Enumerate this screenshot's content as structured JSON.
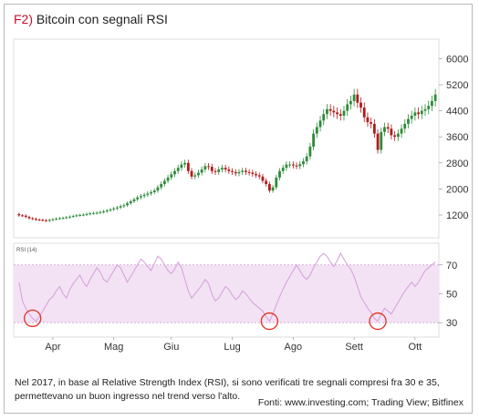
{
  "figure": {
    "number": "F2)",
    "title": "Bitcoin con segnali RSI"
  },
  "caption": "Nel 2017, in base al Relative Strength Index (RSI), si sono verificati tre segnali compresi fra 30 e 35, permettevano un buon ingresso nel trend verso l'alto.",
  "sources": "Fonti: www.investing.com; Trading View; Bitfinex",
  "colors": {
    "up": "#2e8b3a",
    "down": "#b11a1a",
    "rsi_line": "#d6a4dc",
    "rsi_band": "#f3e2f4",
    "signal_circle": "#e0301e",
    "title_accent": "#c8102e"
  },
  "chart_data": [
    {
      "type": "candlestick",
      "title": "Bitcoin con segnali RSI",
      "ylim": [
        500,
        6600
      ],
      "yticks": [
        1200,
        2000,
        2800,
        3600,
        4400,
        5200,
        6000
      ],
      "xticks": [
        "Apr",
        "Mag",
        "Giu",
        "Lug",
        "Ago",
        "Sett",
        "Ott"
      ],
      "close": [
        1190,
        1180,
        1140,
        1100,
        1080,
        1060,
        1050,
        1040,
        1020,
        1050,
        1070,
        1090,
        1100,
        1110,
        1130,
        1150,
        1170,
        1190,
        1200,
        1210,
        1230,
        1250,
        1260,
        1270,
        1290,
        1310,
        1340,
        1370,
        1400,
        1430,
        1470,
        1500,
        1560,
        1620,
        1680,
        1740,
        1780,
        1820,
        1860,
        1900,
        1950,
        2050,
        2150,
        2250,
        2350,
        2450,
        2550,
        2650,
        2750,
        2800,
        2550,
        2380,
        2420,
        2500,
        2600,
        2700,
        2680,
        2550,
        2520,
        2600,
        2650,
        2600,
        2550,
        2520,
        2480,
        2520,
        2560,
        2520,
        2500,
        2460,
        2420,
        2380,
        2250,
        2150,
        1950,
        2050,
        2350,
        2550,
        2650,
        2750,
        2750,
        2720,
        2700,
        2760,
        2850,
        3000,
        3300,
        3700,
        3900,
        4100,
        4300,
        4450,
        4400,
        4350,
        4300,
        4250,
        4400,
        4600,
        4700,
        4900,
        4650,
        4500,
        4200,
        4050,
        4000,
        3700,
        3200,
        3750,
        3900,
        3850,
        3650,
        3600,
        3700,
        3850,
        4000,
        4150,
        4250,
        4350,
        4300,
        4400,
        4450,
        4550,
        4700,
        4900
      ],
      "open": [
        1230,
        1190,
        1180,
        1140,
        1100,
        1080,
        1060,
        1050,
        1040,
        1020,
        1050,
        1070,
        1090,
        1100,
        1110,
        1130,
        1150,
        1170,
        1190,
        1200,
        1210,
        1230,
        1250,
        1260,
        1270,
        1290,
        1310,
        1340,
        1370,
        1400,
        1430,
        1470,
        1500,
        1560,
        1620,
        1680,
        1740,
        1780,
        1820,
        1860,
        1900,
        1950,
        2050,
        2150,
        2250,
        2350,
        2450,
        2550,
        2650,
        2750,
        2800,
        2550,
        2380,
        2420,
        2500,
        2600,
        2700,
        2680,
        2550,
        2520,
        2600,
        2650,
        2600,
        2550,
        2520,
        2480,
        2520,
        2560,
        2520,
        2500,
        2460,
        2420,
        2380,
        2250,
        2150,
        1950,
        2050,
        2350,
        2550,
        2650,
        2750,
        2750,
        2720,
        2700,
        2760,
        2850,
        3000,
        3300,
        3700,
        3900,
        4100,
        4300,
        4450,
        4400,
        4350,
        4300,
        4250,
        4400,
        4600,
        4700,
        4900,
        4650,
        4500,
        4200,
        4050,
        4000,
        3700,
        3200,
        3750,
        3900,
        3850,
        3650,
        3600,
        3700,
        3850,
        4000,
        4150,
        4250,
        4350,
        4300,
        4400,
        4450,
        4550,
        4700
      ],
      "rsi_chart": {
        "type": "line",
        "title": "RSI (14)",
        "ylim": [
          20,
          85
        ],
        "yticks": [
          30,
          50,
          70
        ],
        "band": [
          30,
          70
        ],
        "values": [
          58,
          45,
          40,
          36,
          33,
          31,
          34,
          38,
          42,
          46,
          48,
          52,
          55,
          50,
          47,
          53,
          57,
          60,
          63,
          58,
          55,
          60,
          64,
          68,
          65,
          60,
          58,
          62,
          66,
          70,
          68,
          63,
          58,
          62,
          66,
          70,
          74,
          72,
          69,
          66,
          71,
          76,
          74,
          70,
          66,
          64,
          67,
          72,
          68,
          60,
          52,
          47,
          50,
          53,
          56,
          60,
          57,
          50,
          45,
          47,
          51,
          55,
          53,
          49,
          46,
          48,
          52,
          50,
          47,
          44,
          42,
          40,
          38,
          34,
          31,
          36,
          42,
          48,
          53,
          58,
          62,
          66,
          70,
          66,
          62,
          60,
          63,
          68,
          72,
          76,
          78,
          76,
          72,
          69,
          73,
          78,
          74,
          70,
          67,
          62,
          55,
          48,
          44,
          40,
          37,
          33,
          31,
          36,
          40,
          38,
          36,
          40,
          44,
          48,
          52,
          55,
          58,
          55,
          58,
          62,
          66,
          68,
          70,
          72
        ],
        "signal_indices": [
          4,
          74,
          106
        ]
      }
    }
  ]
}
